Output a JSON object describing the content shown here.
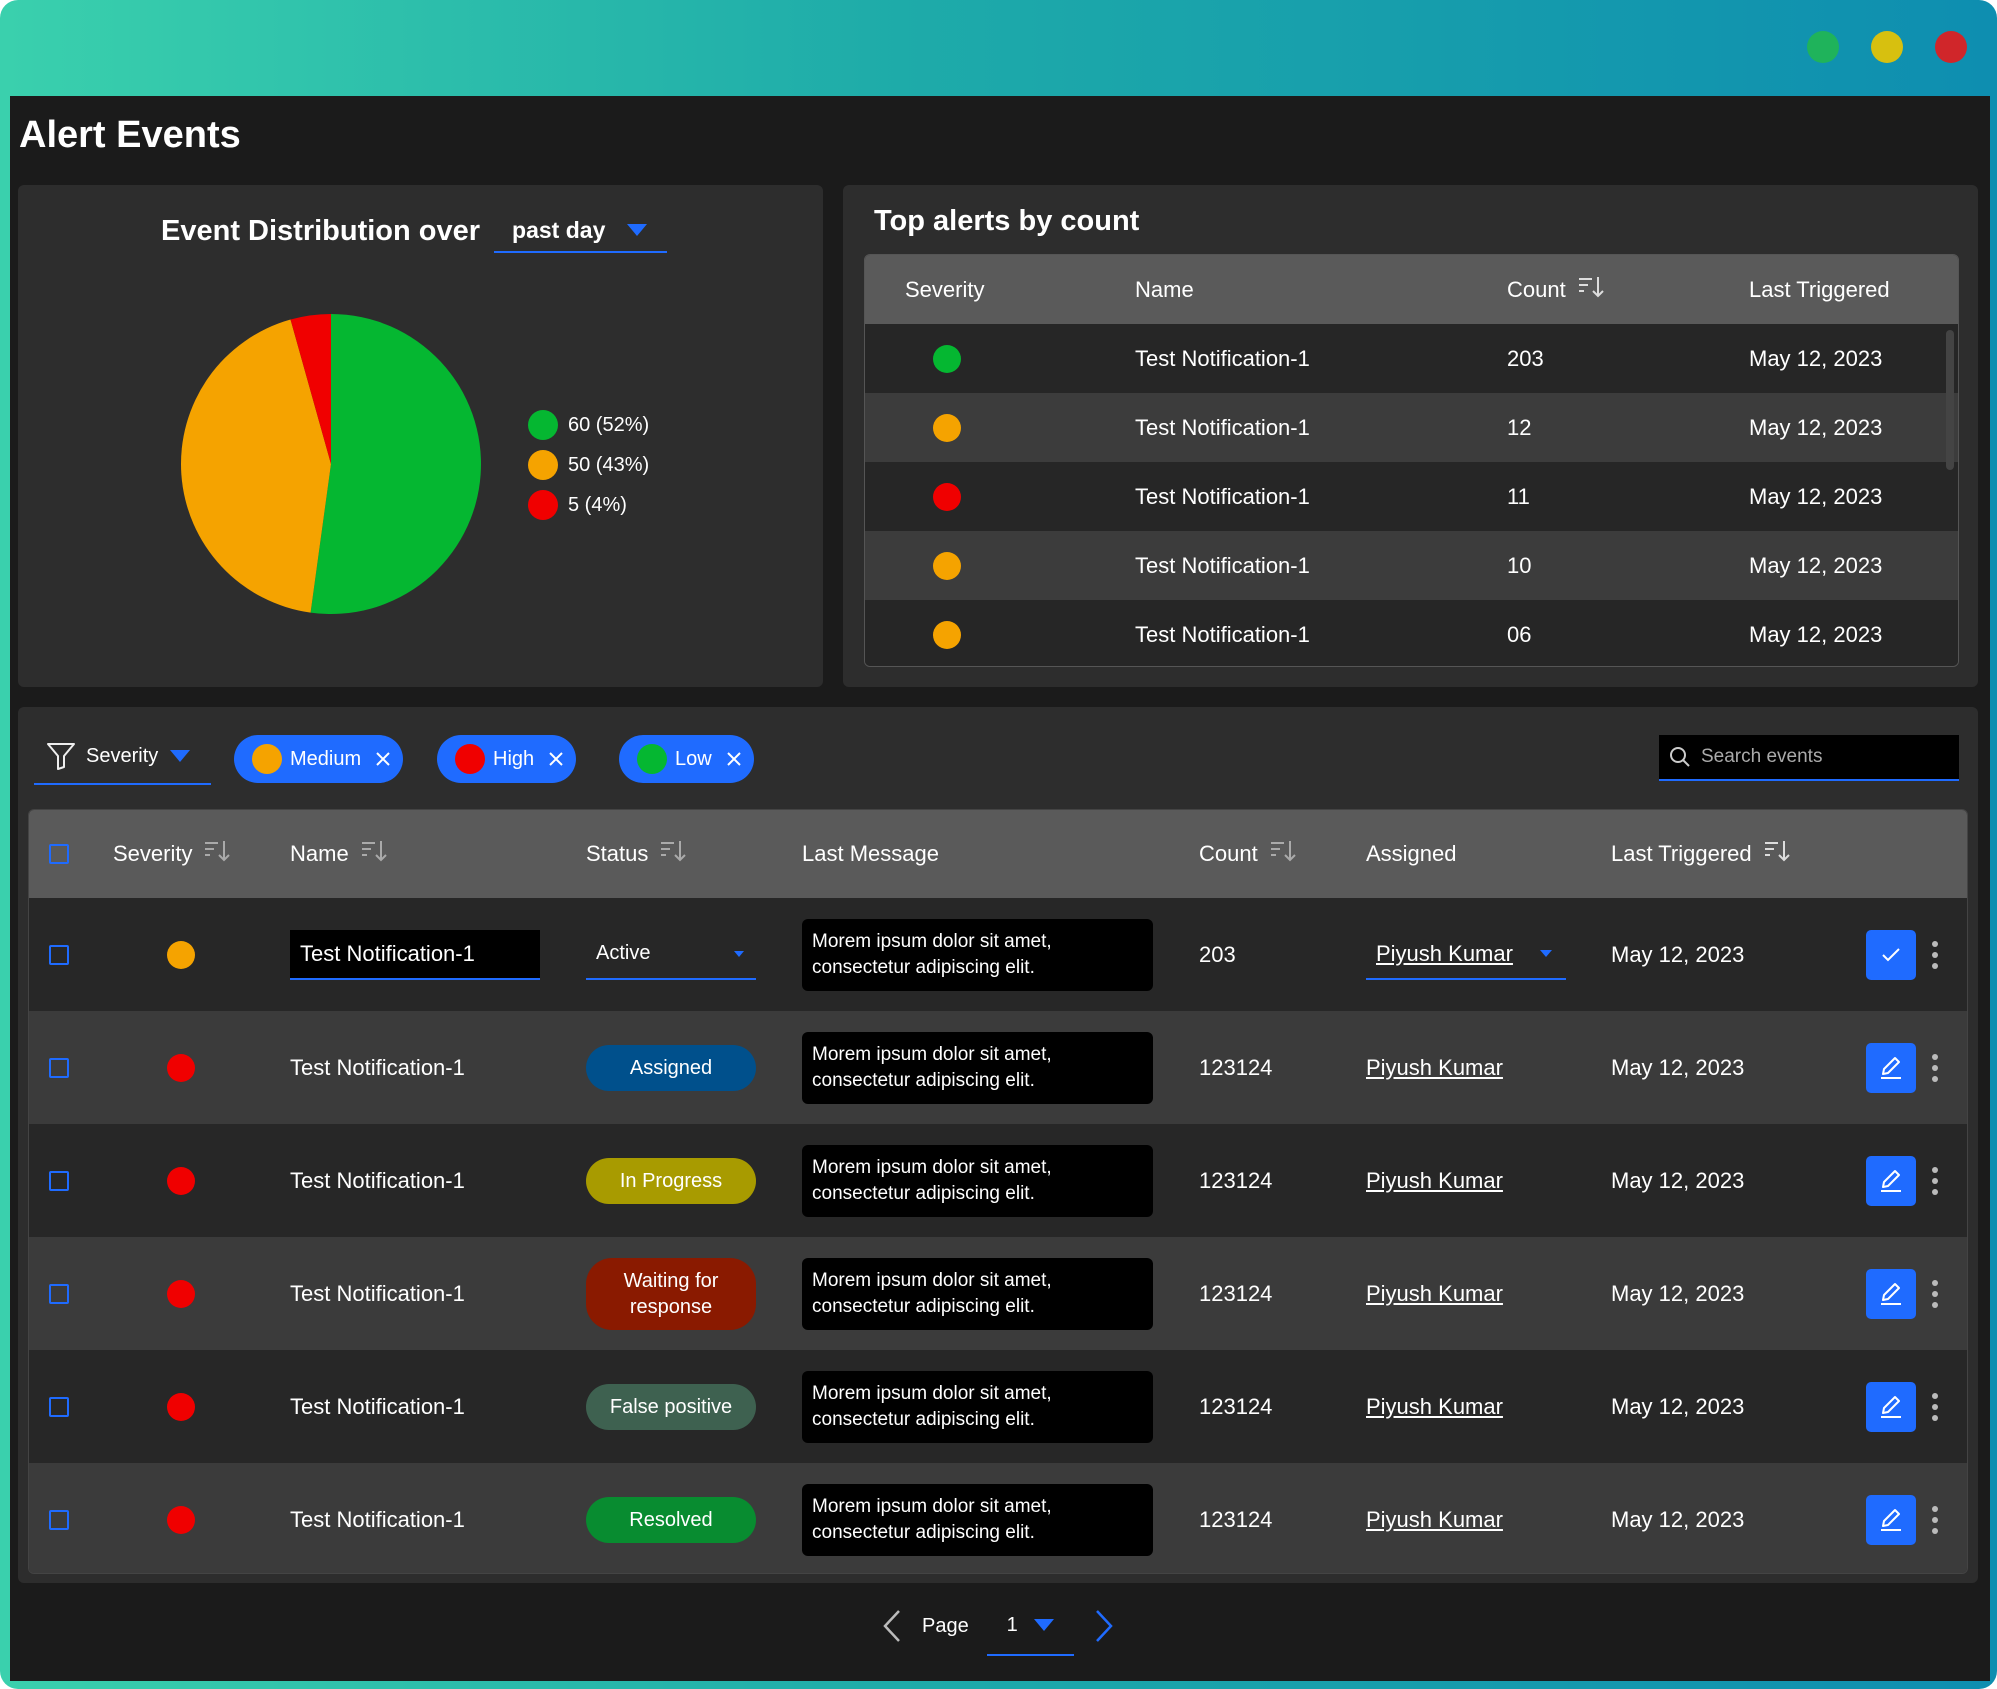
{
  "window": {
    "title": "Alert Events",
    "dots": [
      "#1fb35b",
      "#d7c00f",
      "#d0262a"
    ]
  },
  "colors": {
    "accent": "#1f6bff",
    "green": "#05b731",
    "orange": "#f5a300",
    "red": "#f00000"
  },
  "distribution": {
    "title": "Event Distribution over",
    "range": "past day",
    "legend": [
      {
        "label": "60 (52%)",
        "color": "#05b731"
      },
      {
        "label": "50 (43%)",
        "color": "#f5a300"
      },
      {
        "label": "5 (4%)",
        "color": "#f00000"
      }
    ]
  },
  "chart_data": {
    "type": "pie",
    "categories": [
      "Low",
      "Medium",
      "High"
    ],
    "values": [
      60,
      50,
      5
    ],
    "labels": [
      "60 (52%)",
      "50 (43%)",
      "5 (4%)"
    ],
    "colors": [
      "#05b731",
      "#f5a300",
      "#f00000"
    ]
  },
  "top_alerts": {
    "title": "Top alerts by count",
    "headers": {
      "severity": "Severity",
      "name": "Name",
      "count": "Count",
      "last": "Last Triggered"
    },
    "rows": [
      {
        "color": "#05b731",
        "name": "Test Notification-1",
        "count": "203",
        "date": "May 12, 2023"
      },
      {
        "color": "#f5a300",
        "name": "Test Notification-1",
        "count": "12",
        "date": "May 12, 2023"
      },
      {
        "color": "#f00000",
        "name": "Test Notification-1",
        "count": "11",
        "date": "May 12, 2023"
      },
      {
        "color": "#f5a300",
        "name": "Test Notification-1",
        "count": "10",
        "date": "May 12, 2023"
      },
      {
        "color": "#f5a300",
        "name": "Test Notification-1",
        "count": "06",
        "date": "May 12, 2023"
      }
    ]
  },
  "filters": {
    "severity_label": "Severity",
    "chips": [
      {
        "label": "Medium",
        "color": "#f5a300"
      },
      {
        "label": "High",
        "color": "#f00000"
      },
      {
        "label": "Low",
        "color": "#05b731"
      }
    ],
    "search_placeholder": "Search events"
  },
  "events": {
    "headers": {
      "severity": "Severity",
      "name": "Name",
      "status": "Status",
      "message": "Last Message",
      "count": "Count",
      "assigned": "Assigned",
      "last": "Last Triggered"
    },
    "rows": [
      {
        "color": "#f5a300",
        "name": "Test Notification-1",
        "status": "Active",
        "status_bg": "",
        "status_fg": "#ffffff",
        "message": "Morem ipsum dolor sit amet, consectetur adipiscing elit.",
        "count": "203",
        "assigned": "Piyush Kumar",
        "date": "May 12, 2023",
        "editing": true,
        "action_icon": "check-icon"
      },
      {
        "color": "#f00000",
        "name": "Test Notification-1",
        "status": "Assigned",
        "status_bg": "#00508c",
        "status_fg": "#ffffff",
        "message": "Morem ipsum dolor sit amet, consectetur adipiscing elit.",
        "count": "123124",
        "assigned": "Piyush Kumar",
        "date": "May 12, 2023",
        "editing": false,
        "action_icon": "pencil-icon"
      },
      {
        "color": "#f00000",
        "name": "Test Notification-1",
        "status": "In Progress",
        "status_bg": "#a89b00",
        "status_fg": "#ffffff",
        "message": "Morem ipsum dolor sit amet, consectetur adipiscing elit.",
        "count": "123124",
        "assigned": "Piyush Kumar",
        "date": "May 12, 2023",
        "editing": false,
        "action_icon": "pencil-icon"
      },
      {
        "color": "#f00000",
        "name": "Test Notification-1",
        "status": "Waiting for response",
        "status_bg": "#8a1a00",
        "status_fg": "#ffffff",
        "message": "Morem ipsum dolor sit amet, consectetur adipiscing elit.",
        "count": "123124",
        "assigned": "Piyush Kumar",
        "date": "May 12, 2023",
        "editing": false,
        "action_icon": "pencil-icon"
      },
      {
        "color": "#f00000",
        "name": "Test Notification-1",
        "status": "False positive",
        "status_bg": "#3e6150",
        "status_fg": "#ffffff",
        "message": "Morem ipsum dolor sit amet, consectetur adipiscing elit.",
        "count": "123124",
        "assigned": "Piyush Kumar",
        "date": "May 12, 2023",
        "editing": false,
        "action_icon": "pencil-icon"
      },
      {
        "color": "#f00000",
        "name": "Test Notification-1",
        "status": "Resolved",
        "status_bg": "#088c30",
        "status_fg": "#ffffff",
        "message": "Morem ipsum dolor sit amet, consectetur adipiscing elit.",
        "count": "123124",
        "assigned": "Piyush Kumar",
        "date": "May 12, 2023",
        "editing": false,
        "action_icon": "pencil-icon"
      }
    ]
  },
  "pagination": {
    "label": "Page",
    "current": "1"
  }
}
